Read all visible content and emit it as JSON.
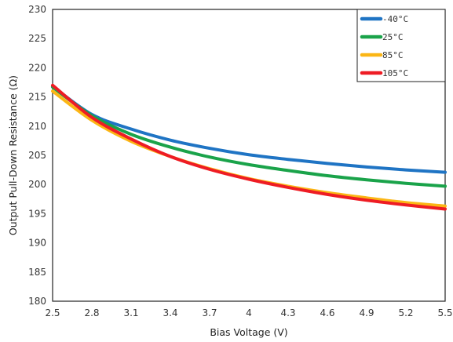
{
  "chart_data": {
    "type": "line",
    "title": "",
    "xlabel": "Bias Voltage (V)",
    "ylabel": "Output Pull-Down Resistance (Ω)",
    "xlim": [
      2.5,
      5.5
    ],
    "ylim": [
      180,
      230
    ],
    "xticks": [
      2.5,
      2.8,
      3.1,
      3.4,
      3.7,
      4.0,
      4.3,
      4.6,
      4.9,
      5.2,
      5.5
    ],
    "xtick_labels": [
      "2.5",
      "2.8",
      "3.1",
      "3.4",
      "3.7",
      "4",
      "4.3",
      "4.6",
      "4.9",
      "5.2",
      "5.5"
    ],
    "yticks": [
      180,
      185,
      190,
      195,
      200,
      205,
      210,
      215,
      220,
      225,
      230
    ],
    "grid": true,
    "legend_position": "top-right",
    "series": [
      {
        "name": "-40°C",
        "color": "#1f74c4",
        "x": [
          2.5,
          2.8,
          3.1,
          3.4,
          3.7,
          4.0,
          4.3,
          4.6,
          4.9,
          5.2,
          5.5
        ],
        "y": [
          216.8,
          212.0,
          209.5,
          207.6,
          206.2,
          205.1,
          204.3,
          203.6,
          203.0,
          202.5,
          202.1
        ]
      },
      {
        "name": "25°C",
        "color": "#1aa34a",
        "x": [
          2.5,
          2.8,
          3.1,
          3.4,
          3.7,
          4.0,
          4.3,
          4.6,
          4.9,
          5.2,
          5.5
        ],
        "y": [
          216.7,
          211.8,
          208.6,
          206.4,
          204.7,
          203.4,
          202.4,
          201.5,
          200.8,
          200.2,
          199.7
        ]
      },
      {
        "name": "85°C",
        "color": "#fbb615",
        "x": [
          2.5,
          2.8,
          3.1,
          3.4,
          3.7,
          4.0,
          4.3,
          4.6,
          4.9,
          5.2,
          5.5
        ],
        "y": [
          216.0,
          211.0,
          207.4,
          204.8,
          202.7,
          201.0,
          199.7,
          198.6,
          197.7,
          196.9,
          196.3
        ]
      },
      {
        "name": "105°C",
        "color": "#ee1c24",
        "x": [
          2.5,
          2.8,
          3.1,
          3.4,
          3.7,
          4.0,
          4.3,
          4.6,
          4.9,
          5.2,
          5.5
        ],
        "y": [
          217.0,
          211.5,
          207.8,
          204.8,
          202.6,
          200.9,
          199.5,
          198.3,
          197.3,
          196.5,
          195.8
        ]
      }
    ]
  }
}
